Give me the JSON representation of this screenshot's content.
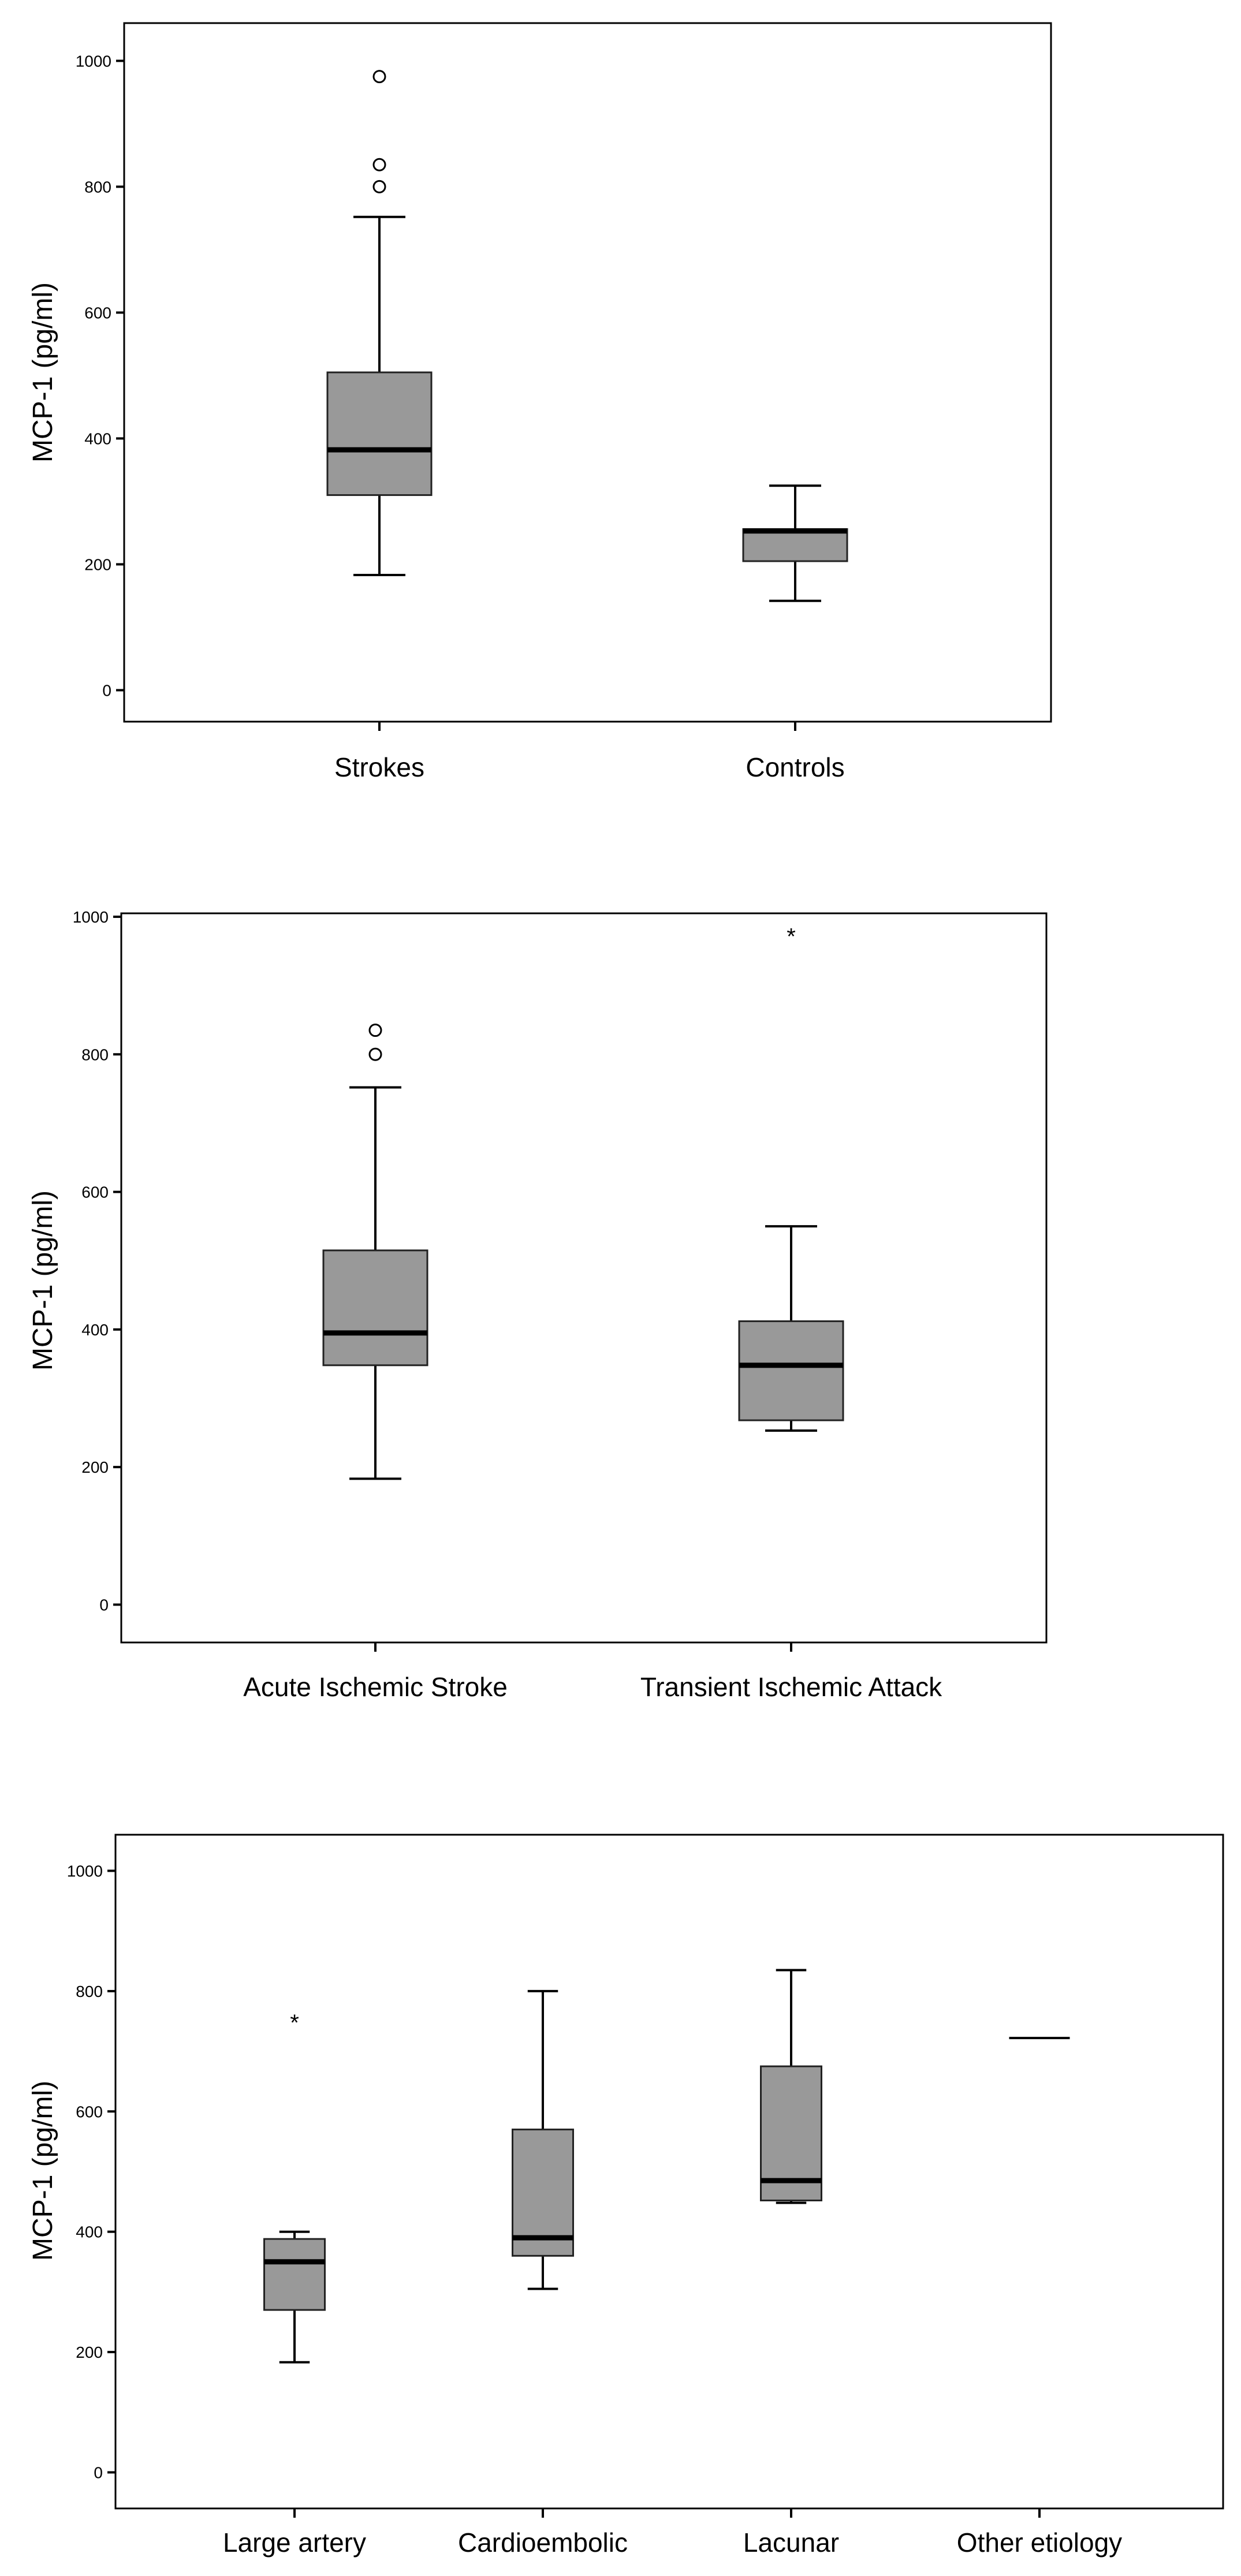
{
  "chart_data": [
    {
      "type": "box",
      "ylabel": "MCP-1 (pg/ml)",
      "xlabel": "",
      "ylim": [
        -50,
        1060
      ],
      "yticks": [
        0,
        200,
        400,
        600,
        800,
        1000
      ],
      "categories": [
        "Strokes",
        "Controls"
      ],
      "boxes": [
        {
          "category": "Strokes",
          "min": 183,
          "q1": 310,
          "median": 382,
          "q3": 505,
          "max": 752,
          "outliers": [
            {
              "value": 800,
              "marker": "circle"
            },
            {
              "value": 835,
              "marker": "circle"
            },
            {
              "value": 975,
              "marker": "circle"
            }
          ]
        },
        {
          "category": "Controls",
          "min": 142,
          "q1": 205,
          "median": 253,
          "q3": 256,
          "max": 325,
          "outliers": []
        }
      ]
    },
    {
      "type": "box",
      "ylabel": "MCP-1 (pg/ml)",
      "xlabel": "",
      "ylim": [
        -55,
        1005
      ],
      "yticks": [
        0,
        200,
        400,
        600,
        800,
        1000
      ],
      "categories": [
        "Acute Ischemic Stroke",
        "Transient Ischemic Attack"
      ],
      "boxes": [
        {
          "category": "Acute Ischemic Stroke",
          "min": 183,
          "q1": 348,
          "median": 395,
          "q3": 515,
          "max": 752,
          "outliers": [
            {
              "value": 800,
              "marker": "circle"
            },
            {
              "value": 835,
              "marker": "circle"
            }
          ]
        },
        {
          "category": "Transient Ischemic Attack",
          "min": 253,
          "q1": 268,
          "median": 348,
          "q3": 412,
          "max": 550,
          "outliers": [
            {
              "value": 975,
              "marker": "star"
            }
          ]
        }
      ]
    },
    {
      "type": "box",
      "ylabel": "MCP-1 (pg/ml)",
      "xlabel": "",
      "ylim": [
        -60,
        1060
      ],
      "yticks": [
        0,
        200,
        400,
        600,
        800,
        1000
      ],
      "categories": [
        "Large artery",
        "Cardioembolic",
        "Lacunar",
        "Other etiology"
      ],
      "boxes": [
        {
          "category": "Large artery",
          "min": 183,
          "q1": 270,
          "median": 350,
          "q3": 388,
          "max": 400,
          "outliers": [
            {
              "value": 752,
              "marker": "star"
            }
          ]
        },
        {
          "category": "Cardioembolic",
          "min": 305,
          "q1": 360,
          "median": 390,
          "q3": 570,
          "max": 800,
          "outliers": []
        },
        {
          "category": "Lacunar",
          "min": 448,
          "q1": 452,
          "median": 485,
          "q3": 675,
          "max": 835,
          "outliers": []
        },
        {
          "category": "Other etiology",
          "min": 722,
          "q1": 722,
          "median": 722,
          "q3": 722,
          "max": 722,
          "outliers": []
        }
      ]
    }
  ]
}
